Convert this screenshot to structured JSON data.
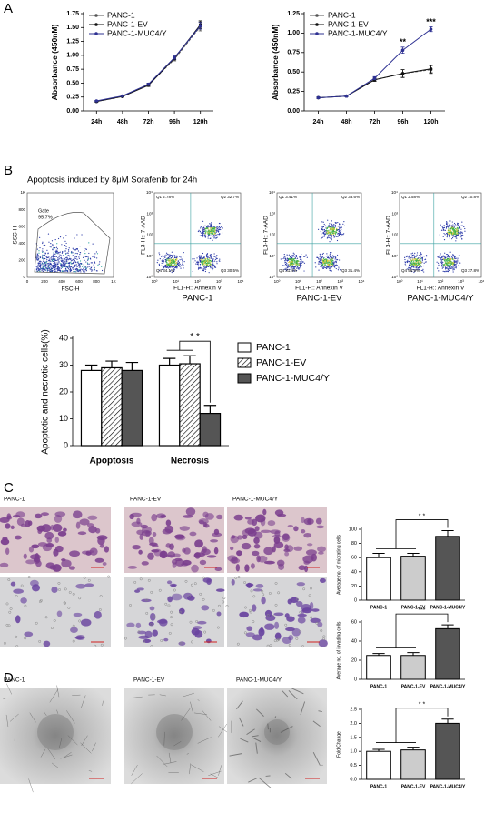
{
  "panel_labels": [
    "A",
    "B",
    "C",
    "D"
  ],
  "chart_data": [
    {
      "type": "line",
      "categories": [
        "24h",
        "48h",
        "72h",
        "96h",
        "120h"
      ],
      "ylabel": "Absorbance (450nM)",
      "ylim": [
        0,
        1.75
      ],
      "yticks": [
        {
          "value": 0,
          "label": "0.00"
        },
        {
          "value": 0.25,
          "label": "0.25"
        },
        {
          "value": 0.5,
          "label": "0.50"
        },
        {
          "value": 0.75,
          "label": "0.75"
        },
        {
          "value": 1,
          "label": "1.00"
        },
        {
          "value": 1.25,
          "label": "1.25"
        },
        {
          "value": 1.5,
          "label": "1.50"
        },
        {
          "value": 1.75,
          "label": "1.75"
        }
      ],
      "legend": "upper left",
      "series": [
        {
          "name": "PANC-1",
          "color": "#555555",
          "values": [
            0.17,
            0.26,
            0.47,
            0.93,
            1.52
          ],
          "errors": [
            0.01,
            0.01,
            0.02,
            0.03,
            0.08
          ]
        },
        {
          "name": "PANC-1-EV",
          "color": "#111111",
          "values": [
            0.17,
            0.26,
            0.46,
            0.95,
            1.55
          ],
          "errors": [
            0.01,
            0.01,
            0.02,
            0.03,
            0.07
          ]
        },
        {
          "name": "PANC-1-MUC4/Y",
          "color": "#2e3192",
          "values": [
            0.18,
            0.27,
            0.48,
            0.96,
            1.53
          ],
          "errors": [
            0.01,
            0.01,
            0.02,
            0.03,
            0.06
          ]
        }
      ]
    },
    {
      "type": "line",
      "categories": [
        "24h",
        "48h",
        "72h",
        "96h",
        "120h"
      ],
      "ylabel": "Absorbance (450nM)",
      "ylim": [
        0,
        1.25
      ],
      "yticks": [
        {
          "value": 0,
          "label": "0.00"
        },
        {
          "value": 0.25,
          "label": "0.25"
        },
        {
          "value": 0.5,
          "label": "0.50"
        },
        {
          "value": 0.75,
          "label": "0.75"
        },
        {
          "value": 1,
          "label": "1.00"
        },
        {
          "value": 1.25,
          "label": "1.25"
        }
      ],
      "legend": "upper left",
      "series": [
        {
          "name": "PANC-1",
          "color": "#555555",
          "values": [
            0.17,
            0.19,
            0.4,
            0.48,
            0.53
          ],
          "errors": [
            0.01,
            0.01,
            0.02,
            0.05,
            0.05
          ]
        },
        {
          "name": "PANC-1-EV",
          "color": "#111111",
          "values": [
            0.17,
            0.19,
            0.4,
            0.48,
            0.54
          ],
          "errors": [
            0.01,
            0.01,
            0.02,
            0.05,
            0.05
          ]
        },
        {
          "name": "PANC-1-MUC4/Y",
          "color": "#2e3192",
          "values": [
            0.17,
            0.19,
            0.42,
            0.78,
            1.05
          ],
          "errors": [
            0.01,
            0.01,
            0.02,
            0.04,
            0.03
          ]
        }
      ],
      "annotations": [
        {
          "x": "96h",
          "text": "**"
        },
        {
          "x": "120h",
          "text": "***"
        }
      ]
    },
    {
      "type": "bar",
      "categories": [
        "Apoptosis",
        "Necrosis"
      ],
      "ylabel": "Apoptotic and necrotic cells(%)",
      "ylim": [
        0,
        40
      ],
      "yticks": [
        0,
        10,
        20,
        30,
        40
      ],
      "legend": "right",
      "series": [
        {
          "name": "PANC-1",
          "color": "#ffffff",
          "values": [
            28,
            30
          ],
          "errors": [
            2,
            2.5
          ]
        },
        {
          "name": "PANC-1-EV",
          "color": "#ffffff",
          "hatch": true,
          "values": [
            29,
            30.5
          ],
          "errors": [
            2.5,
            3
          ]
        },
        {
          "name": "PANC-1-MUC4/Y",
          "color": "#555555",
          "values": [
            28,
            12
          ],
          "errors": [
            3,
            3
          ]
        }
      ],
      "annotation": "* *"
    },
    {
      "type": "bar",
      "categories": [
        "PANC-1",
        "PANC-1-EV",
        "PANC-1-MUC4/Y"
      ],
      "values": [
        60,
        62,
        90
      ],
      "errors": [
        6,
        4,
        8
      ],
      "colors": [
        "#ffffff",
        "#cccccc",
        "#555555"
      ],
      "ylabel": "Average no. of migrating cells",
      "ylim": [
        0,
        100
      ],
      "yticks": [
        0,
        20,
        40,
        60,
        80,
        100
      ],
      "annotation": "* *"
    },
    {
      "type": "bar",
      "categories": [
        "PANC-1",
        "PANC-1-EV",
        "PANC-1-MUC4/Y"
      ],
      "values": [
        25,
        25,
        53
      ],
      "errors": [
        2,
        3,
        4
      ],
      "colors": [
        "#ffffff",
        "#cccccc",
        "#555555"
      ],
      "ylabel": "Average no. of invading cells",
      "ylim": [
        0,
        60
      ],
      "yticks": [
        0,
        20,
        40,
        60
      ],
      "annotation": "***"
    },
    {
      "type": "bar",
      "categories": [
        "PANC-1",
        "PANC-1-EV",
        "PANC-1-MUC4/Y"
      ],
      "values": [
        1.0,
        1.05,
        2.0
      ],
      "errors": [
        0.07,
        0.1,
        0.15
      ],
      "colors": [
        "#ffffff",
        "#cccccc",
        "#555555"
      ],
      "ylabel": "Fold Change",
      "ylim": [
        0,
        2.5
      ],
      "yticks": [
        {
          "value": 0,
          "label": "0.0"
        },
        {
          "value": 0.5,
          "label": "0.5"
        },
        {
          "value": 1,
          "label": "1.0"
        },
        {
          "value": 1.5,
          "label": "1.5"
        },
        {
          "value": 2,
          "label": "2.0"
        },
        {
          "value": 2.5,
          "label": "2.5"
        }
      ],
      "annotation": "* *"
    }
  ],
  "flow": {
    "title": "Apoptosis induced by 8μM Sorafenib for 24h",
    "gate_plot": {
      "ylabel": "SSC-H",
      "xlabel": "FSC-H",
      "gate": "Gate",
      "gate_value": "95.7%",
      "ticks": [
        "0",
        "200",
        "400",
        "600",
        "800",
        "1K"
      ]
    },
    "log_ticks": [
      "10⁰",
      "10¹",
      "10²",
      "10³",
      "10⁴"
    ],
    "plots": [
      {
        "name": "PANC-1",
        "ylabel": "FL3-H:: 7-AAD",
        "xlabel": "FL1-H:: Annexin V",
        "quadrants": [
          "Q1 2.78%",
          "Q2 32.7%",
          "Q4 34.1%",
          "Q3 30.5%"
        ]
      },
      {
        "name": "PANC-1-EV",
        "ylabel": "FL3-H:: 7-AAD",
        "xlabel": "FL1-H:: Annexin V",
        "quadrants": [
          "Q1 3.41%",
          "Q2 33.6%",
          "Q4 31.4%",
          "Q3 31.4%"
        ]
      },
      {
        "name": "PANC-1-MUC4/Y",
        "ylabel": "FL3-H:: 7-AAD",
        "xlabel": "FL1-H:: Annexin V",
        "quadrants": [
          "Q1 2.58%",
          "Q2 10.8%",
          "Q4 58.9%",
          "Q3 27.8%"
        ]
      }
    ]
  },
  "images": {
    "c_labels": [
      "PANC-1",
      "PANC-1-EV",
      "PANC-1-MUC4/Y"
    ],
    "d_labels": [
      "PANC-1",
      "PANC-1-EV",
      "PANC-1-MUC4/Y"
    ]
  }
}
